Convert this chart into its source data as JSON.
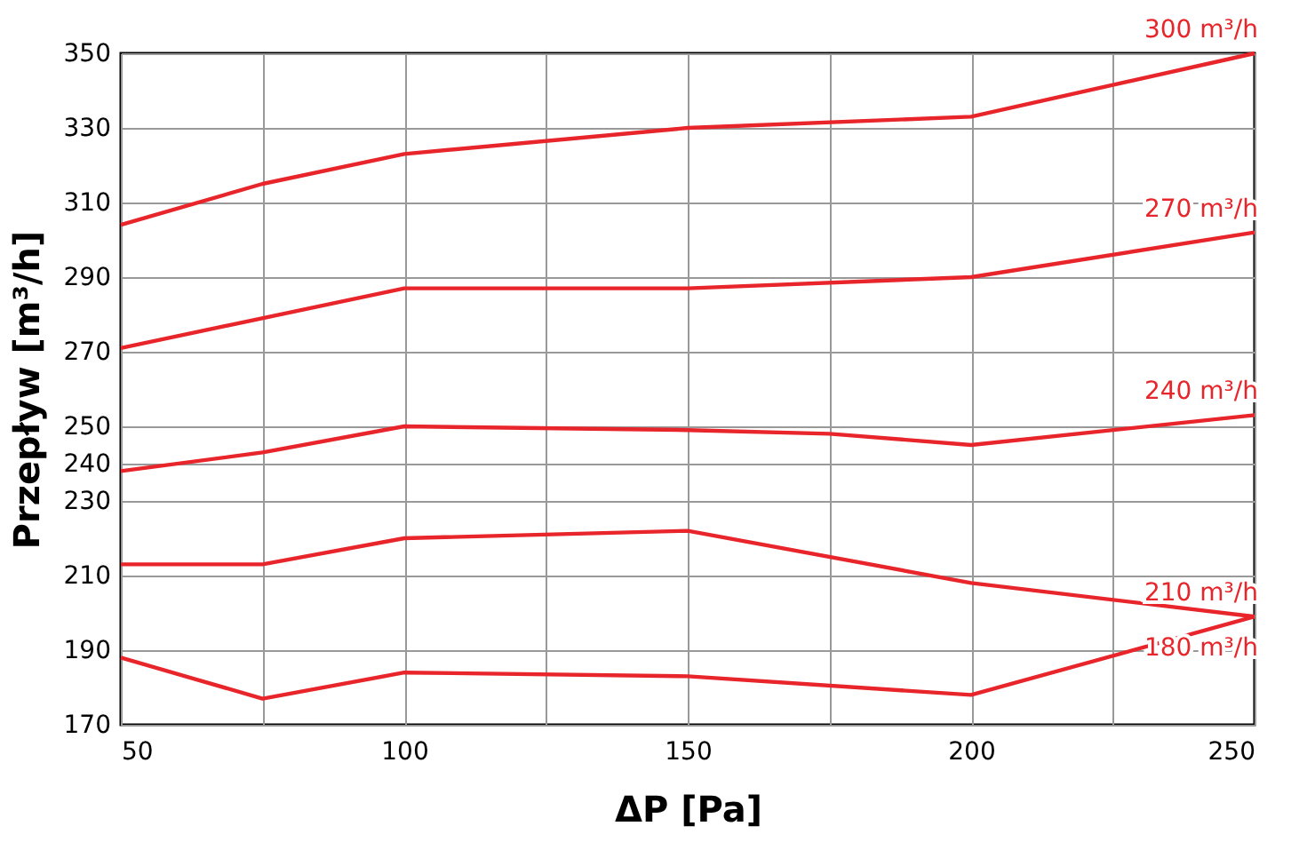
{
  "chart_data": {
    "type": "line",
    "xlabel": "ΔP [Pa]",
    "ylabel": "Przepływ [m³/h]",
    "xlim": [
      50,
      250
    ],
    "xticks": [
      50,
      {
        "value": 75,
        "label": null
      },
      100,
      {
        "value": 125,
        "label": null
      },
      150,
      {
        "value": 175,
        "label": null
      },
      200,
      {
        "value": 225,
        "label": null
      },
      250
    ],
    "ylim": [
      170,
      350
    ],
    "yticks": [
      170,
      190,
      210,
      230,
      240,
      250,
      270,
      290,
      310,
      330,
      350
    ],
    "grid": true,
    "marker": "none",
    "line_style": "solid",
    "series": [
      {
        "name": "300 m³/h",
        "color": "#e8252a",
        "x": [
          50,
          75,
          100,
          150,
          200,
          250
        ],
        "values": [
          304,
          315,
          323,
          330,
          333,
          350
        ]
      },
      {
        "name": "270 m³/h",
        "color": "#e8252a",
        "x": [
          50,
          100,
          150,
          200,
          250
        ],
        "values": [
          271,
          287,
          287,
          290,
          302
        ]
      },
      {
        "name": "240 m³/h",
        "color": "#e8252a",
        "x": [
          50,
          75,
          100,
          150,
          175,
          200,
          250
        ],
        "values": [
          238,
          243,
          250,
          249,
          248,
          245,
          253
        ]
      },
      {
        "name": "210 m³/h",
        "color": "#e8252a",
        "x": [
          50,
          75,
          100,
          150,
          200,
          250
        ],
        "values": [
          213,
          213,
          220,
          222,
          208,
          199
        ]
      },
      {
        "name": "180 m³/h",
        "color": "#e8252a",
        "x": [
          50,
          75,
          100,
          150,
          200,
          250
        ],
        "values": [
          188,
          177,
          184,
          183,
          178,
          199
        ]
      }
    ]
  }
}
